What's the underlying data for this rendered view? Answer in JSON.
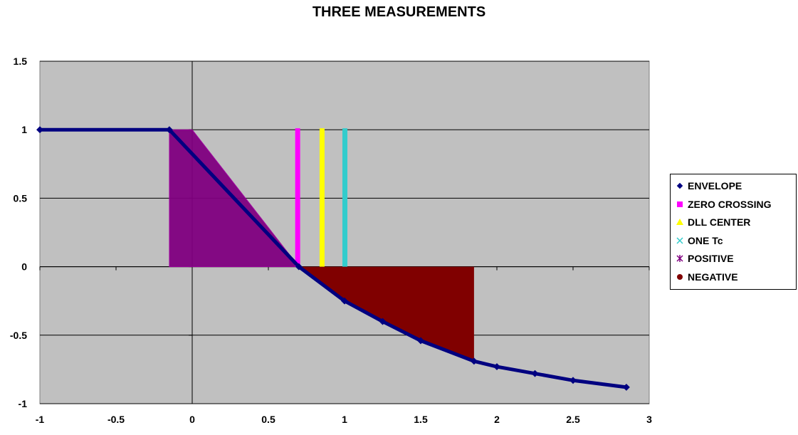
{
  "chart_data": {
    "type": "scatter",
    "title": "THREE MEASUREMENTS",
    "xlabel": "",
    "ylabel": "",
    "xlim": [
      -1,
      3
    ],
    "ylim": [
      -1,
      1.5
    ],
    "x_ticks": [
      -1,
      -0.5,
      0,
      0.5,
      1,
      1.5,
      2,
      2.5,
      3
    ],
    "y_ticks": [
      -1,
      -0.5,
      0,
      0.5,
      1,
      1.5
    ],
    "x_tick_labels": [
      "-1",
      "-0.5",
      "0",
      "0.5",
      "1",
      "1.5",
      "2",
      "2.5",
      "3"
    ],
    "y_tick_labels": [
      "-1",
      "-0.5",
      "0",
      "0.5",
      "1",
      "1.5"
    ],
    "grid": "horizontal",
    "plot_background": "#c0c0c0",
    "legend_position": "right",
    "series": [
      {
        "name": "ENVELOPE",
        "marker": "diamond",
        "color": "#000080",
        "points": [
          [
            -1,
            1
          ],
          [
            -0.15,
            1
          ],
          [
            0.7,
            0
          ],
          [
            1.0,
            -0.25
          ],
          [
            1.25,
            -0.4
          ],
          [
            1.5,
            -0.54
          ],
          [
            1.85,
            -0.69
          ],
          [
            2.0,
            -0.73
          ],
          [
            2.25,
            -0.78
          ],
          [
            2.5,
            -0.83
          ],
          [
            2.85,
            -0.88
          ]
        ]
      },
      {
        "name": "ZERO CROSSING",
        "marker": "square",
        "color": "#ff00ff",
        "x": 0.69,
        "y_range": [
          0,
          1
        ]
      },
      {
        "name": "DLL CENTER",
        "marker": "triangle",
        "color": "#ffff00",
        "x": 0.85,
        "y_range": [
          0,
          1
        ]
      },
      {
        "name": "ONE Tc",
        "marker": "x",
        "color": "#33cccc",
        "x": 1.0,
        "y_range": [
          0,
          1
        ]
      },
      {
        "name": "POSITIVE",
        "marker": "star",
        "color": "#800080",
        "points": [
          [
            -0.15,
            0
          ],
          [
            -0.15,
            1
          ],
          [
            0.0,
            1
          ],
          [
            0.7,
            0
          ]
        ]
      },
      {
        "name": "NEGATIVE",
        "marker": "circle",
        "color": "#800000",
        "points": [
          [
            0.7,
            0
          ],
          [
            1.85,
            0
          ],
          [
            1.85,
            -0.69
          ],
          [
            1.5,
            -0.54
          ],
          [
            1.25,
            -0.4
          ],
          [
            1.0,
            -0.25
          ]
        ]
      }
    ]
  }
}
